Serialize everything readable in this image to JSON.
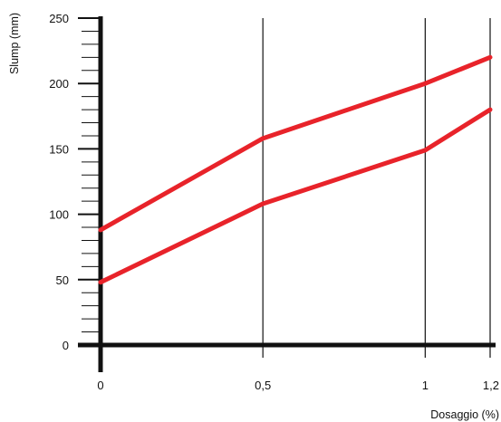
{
  "chart_data": {
    "type": "line",
    "xlabel": "Dosaggio (%)",
    "ylabel": "Slump (mm)",
    "xlim": [
      0,
      1.2
    ],
    "ylim": [
      0,
      250
    ],
    "x_ticks": [
      0,
      0.5,
      1,
      1.2
    ],
    "x_tick_labels": [
      "0",
      "0,5",
      "1",
      "1,2"
    ],
    "y_ticks": [
      0,
      50,
      100,
      150,
      200,
      250
    ],
    "y_tick_labels": [
      "0",
      "50",
      "100",
      "150",
      "200",
      "250"
    ],
    "y_minor_step": 10,
    "grid": "vertical lines at x ticks",
    "line_color": "#e8232a",
    "series": [
      {
        "x": [
          0,
          0.5,
          1,
          1.2
        ],
        "values": [
          88,
          158,
          200,
          220
        ]
      },
      {
        "x": [
          0,
          0.5,
          1,
          1.2
        ],
        "values": [
          48,
          108,
          149,
          180
        ]
      }
    ]
  }
}
